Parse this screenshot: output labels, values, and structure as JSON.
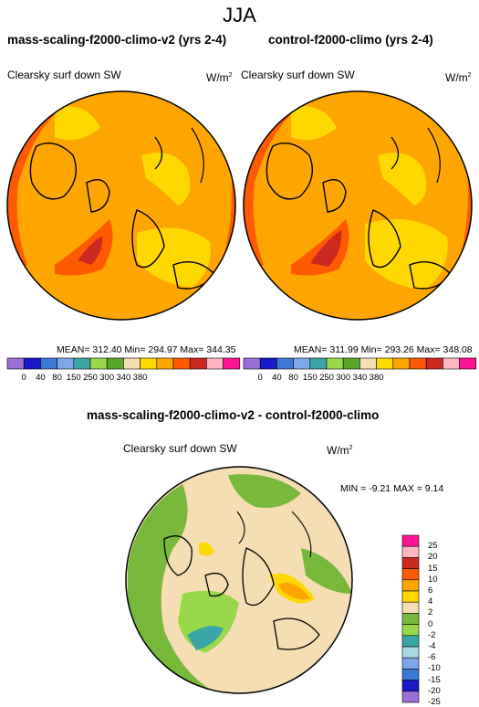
{
  "suptitle": "JJA",
  "panels": [
    {
      "title": "mass-scaling-f2000-climo-v2 (yrs 2-4)",
      "variable": "Clearsky surf down SW",
      "units_base": "W/m",
      "units_exp": "2",
      "stats": "MEAN= 312.40  Min= 294.97  Max= 344.35"
    },
    {
      "title": "control-f2000-climo (yrs 2-4)",
      "variable": "Clearsky surf down SW",
      "units_base": "W/m",
      "units_exp": "2",
      "stats": "MEAN= 311.99  Min= 293.26  Max= 348.08"
    }
  ],
  "diff_panel": {
    "title": "mass-scaling-f2000-climo-v2 - control-f2000-climo",
    "variable": "Clearsky surf down SW",
    "units_base": "W/m",
    "units_exp": "2",
    "stats": "MIN =  -9.21 MAX =   9.14"
  },
  "colors": {
    "abs_levels": [
      "#9c6fd6",
      "#1a1ac8",
      "#3c78d8",
      "#7fa6e8",
      "#3aa6a6",
      "#98d84a",
      "#5aa62a",
      "#f5deb3",
      "#ffd800",
      "#ffa500",
      "#ff5a00",
      "#cc2a20",
      "#ffb6c1",
      "#ff1493"
    ],
    "diff_levels": [
      "#9c6fd6",
      "#1a1ac8",
      "#3c78d8",
      "#7fa6e8",
      "#a8d8e0",
      "#3aa6a6",
      "#98d84a",
      "#78b83a",
      "#f5deb3",
      "#ffd800",
      "#ffa500",
      "#ff5a00",
      "#cc2a20",
      "#ffb6c1",
      "#ff1493"
    ]
  },
  "chart_data": [
    {
      "type": "heatmap",
      "title": "mass-scaling-f2000-climo-v2 (yrs 2-4)",
      "variable": "Clearsky surf down SW",
      "units": "W/m2",
      "projection": "polar",
      "mean": 312.4,
      "min": 294.97,
      "max": 344.35,
      "colorbar_ticks": [
        "0",
        "40",
        "80",
        "150",
        "250",
        "300",
        "340",
        "380"
      ]
    },
    {
      "type": "heatmap",
      "title": "control-f2000-climo (yrs 2-4)",
      "variable": "Clearsky surf down SW",
      "units": "W/m2",
      "projection": "polar",
      "mean": 311.99,
      "min": 293.26,
      "max": 348.08,
      "colorbar_ticks": [
        "0",
        "40",
        "80",
        "150",
        "250",
        "300",
        "340",
        "380"
      ]
    },
    {
      "type": "heatmap",
      "title": "mass-scaling-f2000-climo-v2 - control-f2000-climo",
      "variable": "Clearsky surf down SW",
      "units": "W/m2",
      "projection": "polar",
      "min": -9.21,
      "max": 9.14,
      "colorbar_ticks": [
        "25",
        "20",
        "15",
        "10",
        "6",
        "4",
        "2",
        "0",
        "-2",
        "-4",
        "-6",
        "-10",
        "-15",
        "-20",
        "-25"
      ]
    }
  ]
}
